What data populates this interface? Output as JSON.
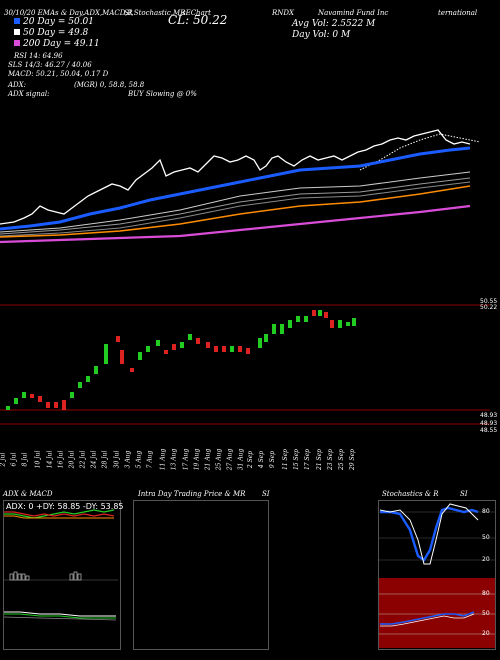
{
  "header": {
    "top_line": [
      "30/10/20 EMAs & Day,ADX,MACD,R",
      "SI,Stochastic,MR",
      "sEChart",
      "RNDX",
      "Navamind Fund Inc",
      "ternational"
    ],
    "ma20": "20 Day = 50.01",
    "ma50": "50 Day = 49.8",
    "ma200": "200 Day = 49.11",
    "cl": "CL: 50.22",
    "avg_vol": "Avg Vol: 2.5522  M",
    "day_vol": "Day Vol: 0   M",
    "rsi": "RSI 14: 64.96",
    "stoch": "SLS 14/3: 46.27 / 40.06",
    "macd": "MACD: 50.21, 50.04, 0.17 D",
    "adx": "ADX:",
    "mgr": "(MGR) 0, 58.8, 58.8",
    "adx_signal": "ADX signal:",
    "buy": "BUY Slowing @ 0%"
  },
  "colors": {
    "ma_fast": "#1a5cff",
    "ma_mid": "#ff8c00",
    "ma_slow": "#d84cd8",
    "price_line": "#ffffff",
    "up": "#22cc22",
    "down": "#dd2222",
    "red_line": "#8b0000"
  },
  "price_axis": {
    "upper": [
      "50.55",
      "50.22"
    ],
    "lower": [
      "48.93",
      "48.93",
      "48.55"
    ]
  },
  "dates": [
    "2 Jul",
    "6 Jul",
    "8 Jul",
    "10 Jul",
    "14 Jul",
    "16 Jul",
    "20 Jul",
    "22 Jul",
    "24 Jul",
    "28 Jul",
    "30 Jul",
    "3 Aug",
    "5 Aug",
    "7 Aug",
    "11 Aug",
    "13 Aug",
    "17 Aug",
    "19 Aug",
    "21 Aug",
    "25 Aug",
    "27 Aug",
    "31 Aug",
    "2 Sep",
    "4 Sep",
    "9 Sep",
    "11 Sep",
    "15 Sep",
    "17 Sep",
    "21 Sep",
    "23 Sep",
    "25 Sep",
    "29 Sep"
  ],
  "panels": {
    "adx_title": "ADX  & MACD",
    "adx_value": "ADX: 0  +DY: 58.85  -DY: 53.85",
    "intra_title": "Intra  Day Trading Price  & MR",
    "si_label": "SI",
    "stoch_title": "Stochastics & R",
    "stoch_si": "SI",
    "stoch_levels": [
      "80",
      "50",
      "20"
    ],
    "rsi_levels": [
      "80",
      "50",
      "20"
    ]
  },
  "chart_data": {
    "type": "line",
    "series": [
      {
        "values": [
          49.1,
          49.15,
          49.2,
          49.3,
          49.35,
          49.5,
          49.6,
          49.65,
          49.7,
          49.8,
          49.9,
          50.0,
          50.1,
          50.15,
          50.2,
          50.3,
          50.35,
          50.4,
          50.5,
          50.55,
          50.5,
          50.45,
          50.5,
          50.55,
          50.6,
          50.7,
          50.8,
          50.75,
          50.7,
          50.72,
          50.7,
          50.75
        ]
      }
    ]
  }
}
